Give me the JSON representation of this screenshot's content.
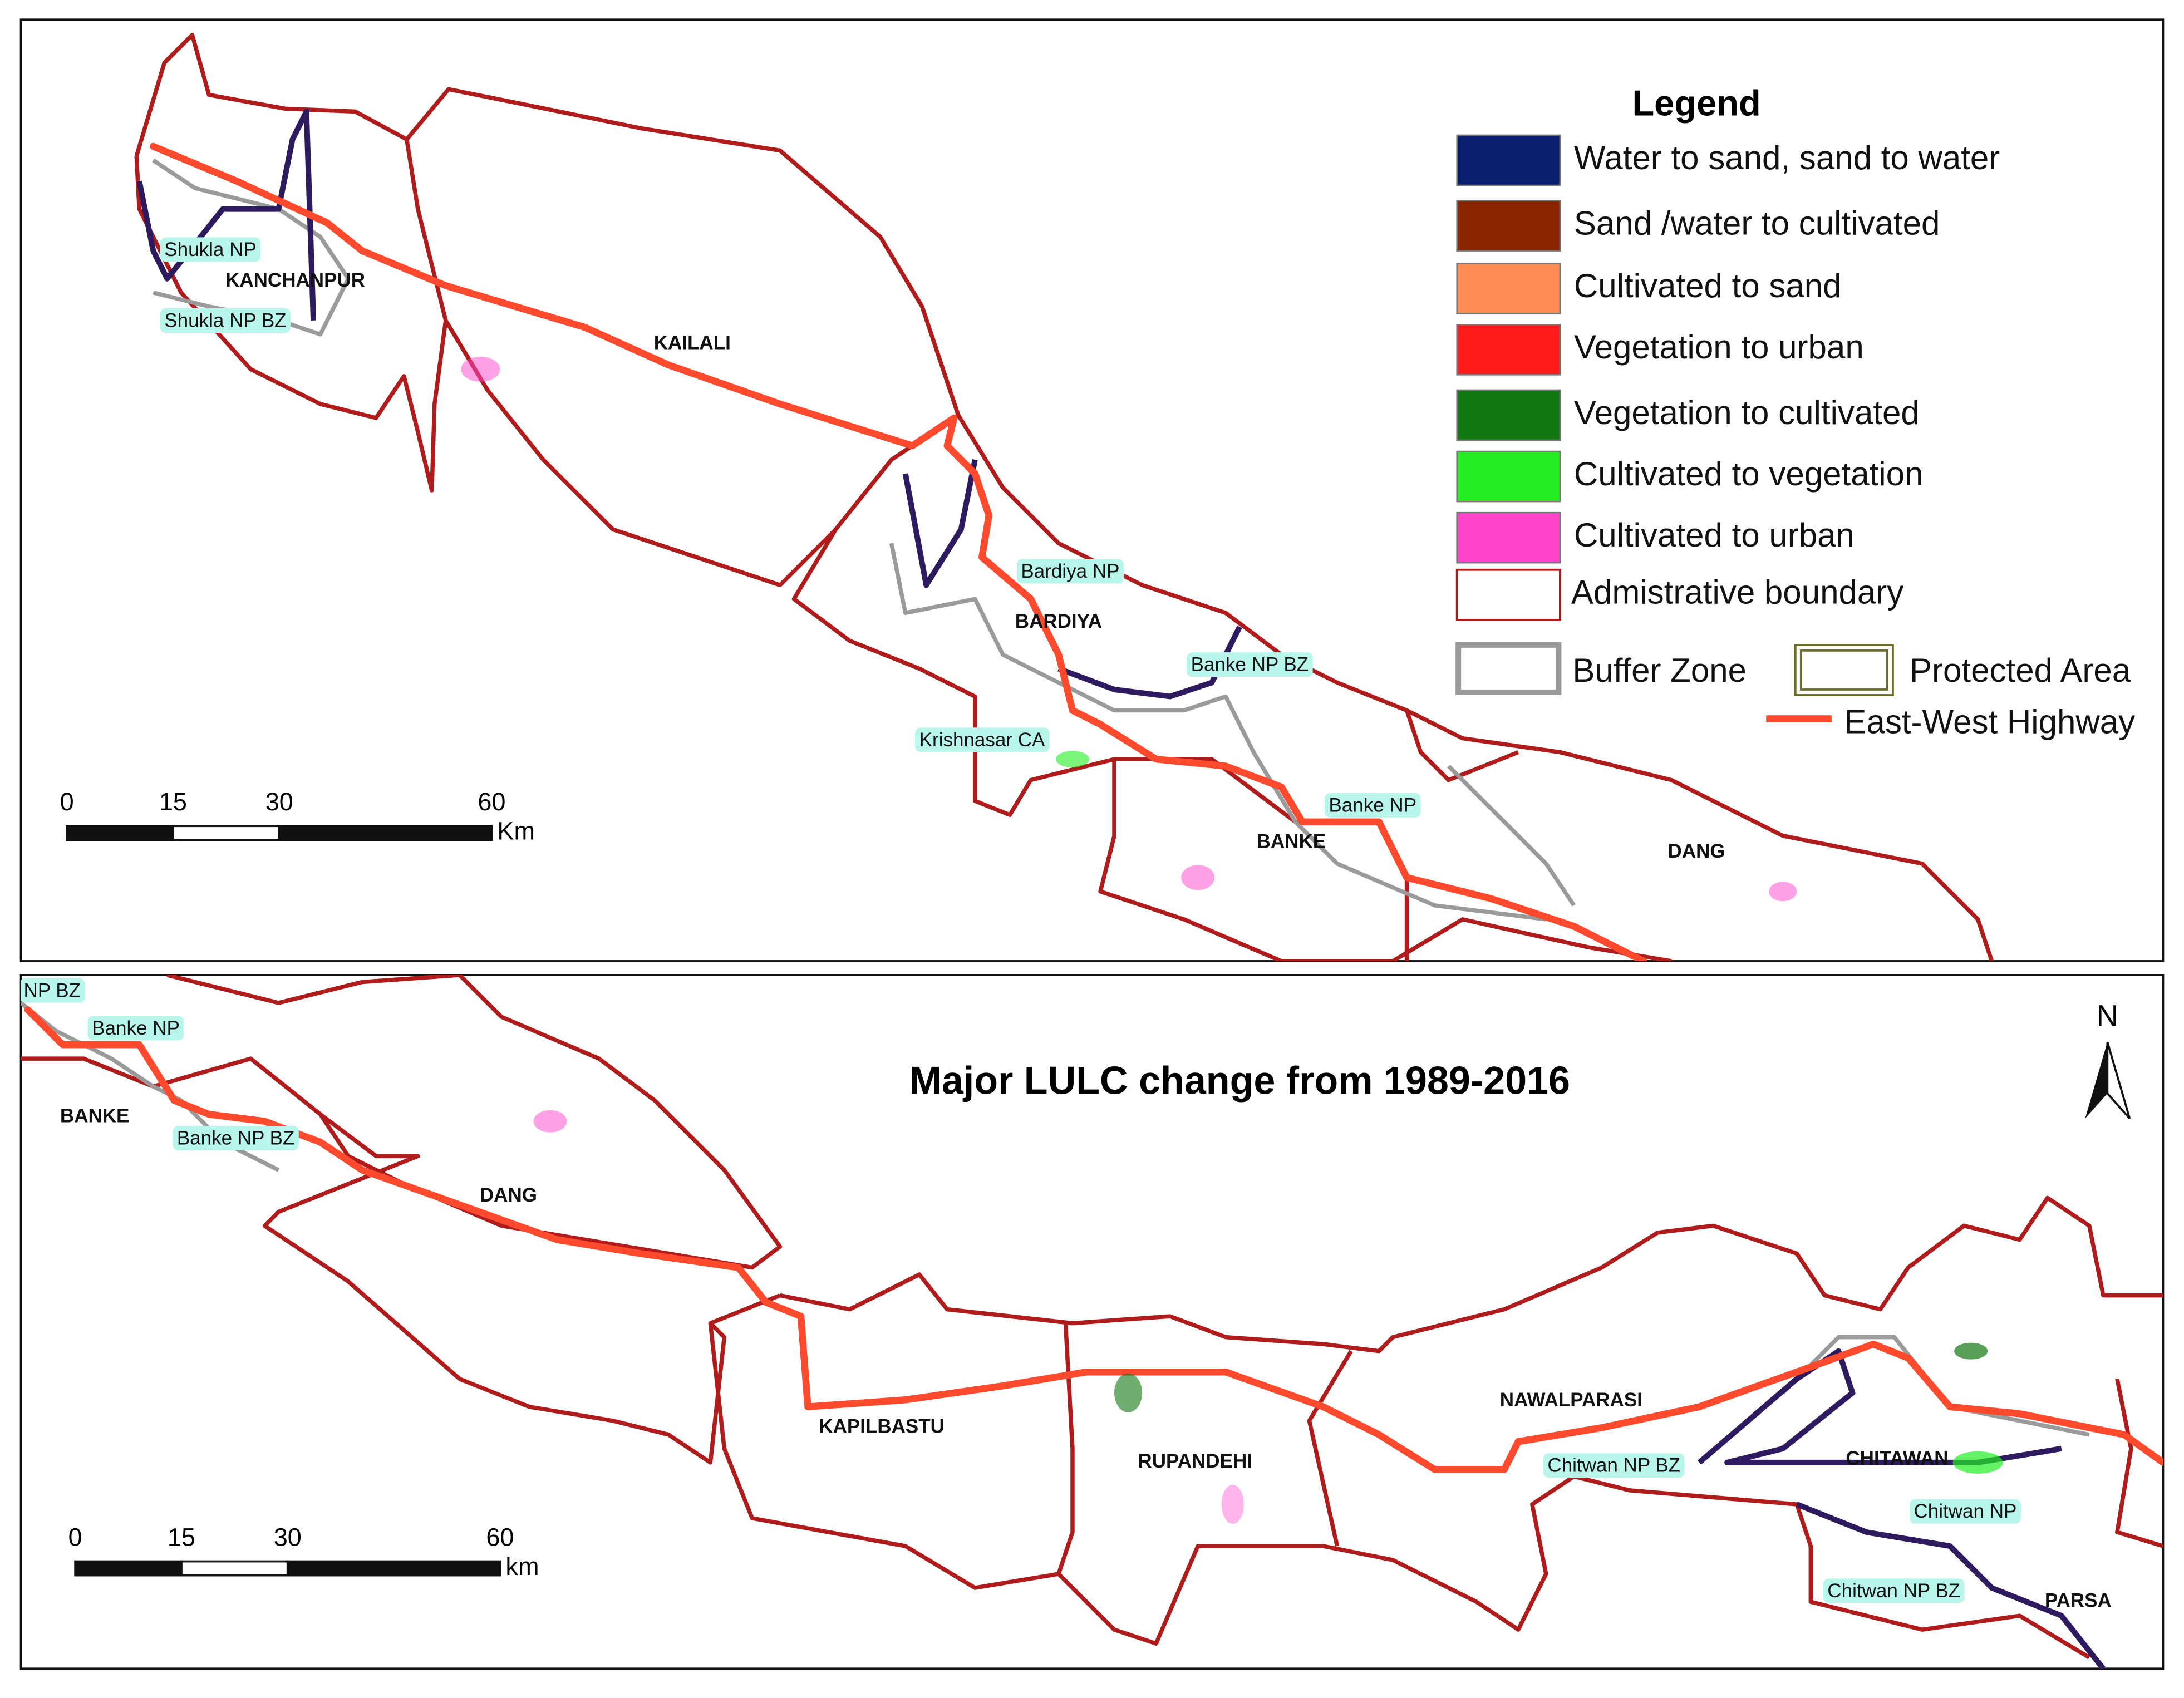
{
  "title": "Major LULC change from 1989-2016",
  "north_arrow": "N",
  "legend": {
    "title": "Legend",
    "items": [
      {
        "label": "Water to sand, sand to water",
        "color": "#0c1f6e"
      },
      {
        "label": "Sand /water to cultivated",
        "color": "#8b2500"
      },
      {
        "label": "Cultivated to sand",
        "color": "#ff8c55"
      },
      {
        "label": "Vegetation to urban",
        "color": "#ff1a1a"
      },
      {
        "label": "Vegetation to cultivated",
        "color": "#117711"
      },
      {
        "label": "Cultivated to vegetation",
        "color": "#22ee22"
      },
      {
        "label": "Cultivated to urban",
        "color": "#ff44cc"
      },
      {
        "label": "Admistrative boundary",
        "color": "#b01c1c"
      },
      {
        "label": "Buffer Zone",
        "color": "#9a9a9a"
      },
      {
        "label": "Protected Area",
        "color": "#6b6b2a"
      },
      {
        "label": "East-West Highway",
        "color": "#ff4a2e"
      }
    ]
  },
  "maps": [
    {
      "districts": [
        "KANCHANPUR",
        "KAILALI",
        "BARDIYA",
        "BANKE",
        "DANG"
      ],
      "protected_areas": [
        "Shukla NP",
        "Shukla NP BZ",
        "Bardiya NP",
        "Banke NP BZ",
        "Krishnasar CA",
        "Banke NP"
      ],
      "scale_bar": {
        "ticks": [
          0,
          15,
          30,
          60
        ],
        "unit": "Km"
      }
    },
    {
      "districts": [
        "BANKE",
        "DANG",
        "KAPILBASTU",
        "RUPANDEHI",
        "NAWALPARASI",
        "CHITAWAN",
        "PARSA"
      ],
      "protected_areas": [
        "NP BZ",
        "Banke NP",
        "Banke NP BZ",
        "Chitwan NP BZ",
        "Chitwan NP",
        "Chitwan NP BZ"
      ],
      "scale_bar": {
        "ticks": [
          0,
          15,
          30,
          60
        ],
        "unit": "km"
      }
    }
  ]
}
